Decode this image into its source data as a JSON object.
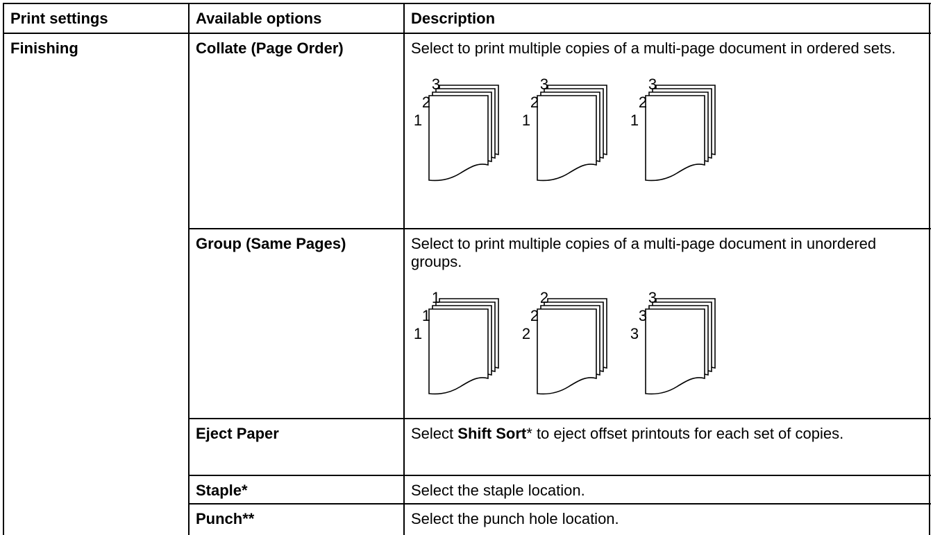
{
  "table": {
    "header": [
      "Print settings",
      "Available options",
      "Description"
    ],
    "setting": "Finishing",
    "rows": [
      {
        "option": "Collate (Page Order)",
        "description": [
          {
            "text": "Select to print multiple copies of a multi-page document in ordered sets.",
            "bold": false
          }
        ],
        "illustration": [
          [
            "1",
            "2",
            "3"
          ],
          [
            "1",
            "2",
            "3"
          ],
          [
            "1",
            "2",
            "3"
          ]
        ]
      },
      {
        "option": "Group (Same Pages)",
        "description": [
          {
            "text": "Select to print multiple copies of a multi-page document in unordered groups.",
            "bold": false
          }
        ],
        "illustration": [
          [
            "1",
            "1",
            "1"
          ],
          [
            "2",
            "2",
            "2"
          ],
          [
            "3",
            "3",
            "3"
          ]
        ]
      },
      {
        "option": "Eject Paper",
        "description": [
          {
            "text": "Select ",
            "bold": false
          },
          {
            "text": "Shift Sort",
            "bold": true
          },
          {
            "text": "* to eject offset printouts for each set of copies.",
            "bold": false
          }
        ]
      },
      {
        "option": "Staple*",
        "description": [
          {
            "text": "Select the staple location.",
            "bold": false
          }
        ]
      },
      {
        "option": "Punch**",
        "description": [
          {
            "text": "Select the punch hole location.",
            "bold": false
          }
        ]
      }
    ]
  }
}
